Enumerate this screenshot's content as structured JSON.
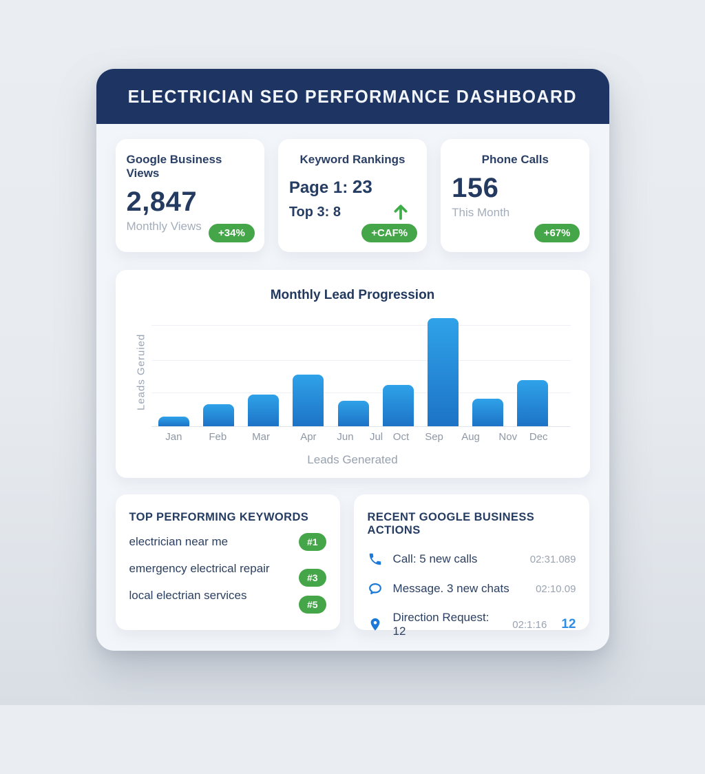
{
  "header": {
    "title": "ELECTRICIAN SEO PERFORMANCE DASHBOARD"
  },
  "stats": [
    {
      "title": "Google Business Views",
      "value": "2,847",
      "subtitle": "Monthly Views",
      "badge": "+34%"
    },
    {
      "title": "Keyword Rankings",
      "line1_label": "Page 1:",
      "line1_value": "23",
      "line2_label": "Top 3:",
      "line2_value": "8",
      "badge": "+CAF%",
      "arrow_icon": "green-up-arrow"
    },
    {
      "title": "Phone Calls",
      "value": "156",
      "subtitle": "This Month",
      "badge": "+67%"
    }
  ],
  "chart_data": {
    "type": "bar",
    "title": "Monthly Lead Progression",
    "xlabel": "Leads Generated",
    "ylabel": "Leads Geruied",
    "x_tick_labels": [
      "Jan",
      "Feb",
      "Mar",
      "Apr",
      "Jun",
      "Jul",
      "Oct",
      "Sep",
      "Aug",
      "Nov",
      "Dec"
    ],
    "values": [
      9,
      20,
      29,
      47,
      23,
      38,
      99,
      25,
      42
    ],
    "ylim": [
      0,
      100
    ],
    "grid": true,
    "gridline_values": [
      30,
      60,
      92
    ],
    "note": "source image renders 9 bars under 11 month tick labels; Jul/Oct and Nov/Dec share bars",
    "bar_center_positions_pct": [
      5.4,
      16.1,
      26.8,
      37.5,
      48.2,
      58.9,
      69.6,
      80.3,
      91.0
    ],
    "label_positions_pct": [
      5.4,
      15.9,
      26.2,
      37.5,
      46.3,
      53.7,
      59.6,
      67.5,
      76.2,
      85.1,
      92.4
    ],
    "bar_width_pct": 7.4,
    "bar_color_top": "#2fa2e9",
    "bar_color_bottom": "#1d73c6"
  },
  "keywords": {
    "title": "TOP PERFORMING KEYWORDS",
    "items": [
      {
        "keyword": "electrician near me",
        "rank": "#1"
      },
      {
        "keyword": "emergency electrical repair",
        "rank": "#3"
      },
      {
        "keyword": "local electrian services",
        "rank": "#5"
      }
    ]
  },
  "actions": {
    "title": "RECENT GOOGLE BUSINESS ACTIONS",
    "items": [
      {
        "icon": "phone-icon",
        "label": "Call: 5 new calls",
        "time": "02:31.089"
      },
      {
        "icon": "chat-icon",
        "label": "Message. 3 new chats",
        "time": "02:10.09"
      },
      {
        "icon": "map-pin-icon",
        "label": "Direction Request: 12",
        "time": "02:1:16",
        "highlight": "12"
      }
    ]
  },
  "colors": {
    "header_navy": "#1e3563",
    "text_navy": "#253c63",
    "muted_gray": "#9aa3b1",
    "badge_green": "#45a649",
    "accent_blue": "#2e8ee6",
    "bar_gradient_top": "#2fa2e9",
    "bar_gradient_bottom": "#1d73c6",
    "container_bg": "#f2f5f9",
    "page_bg": "#e7ebef"
  }
}
